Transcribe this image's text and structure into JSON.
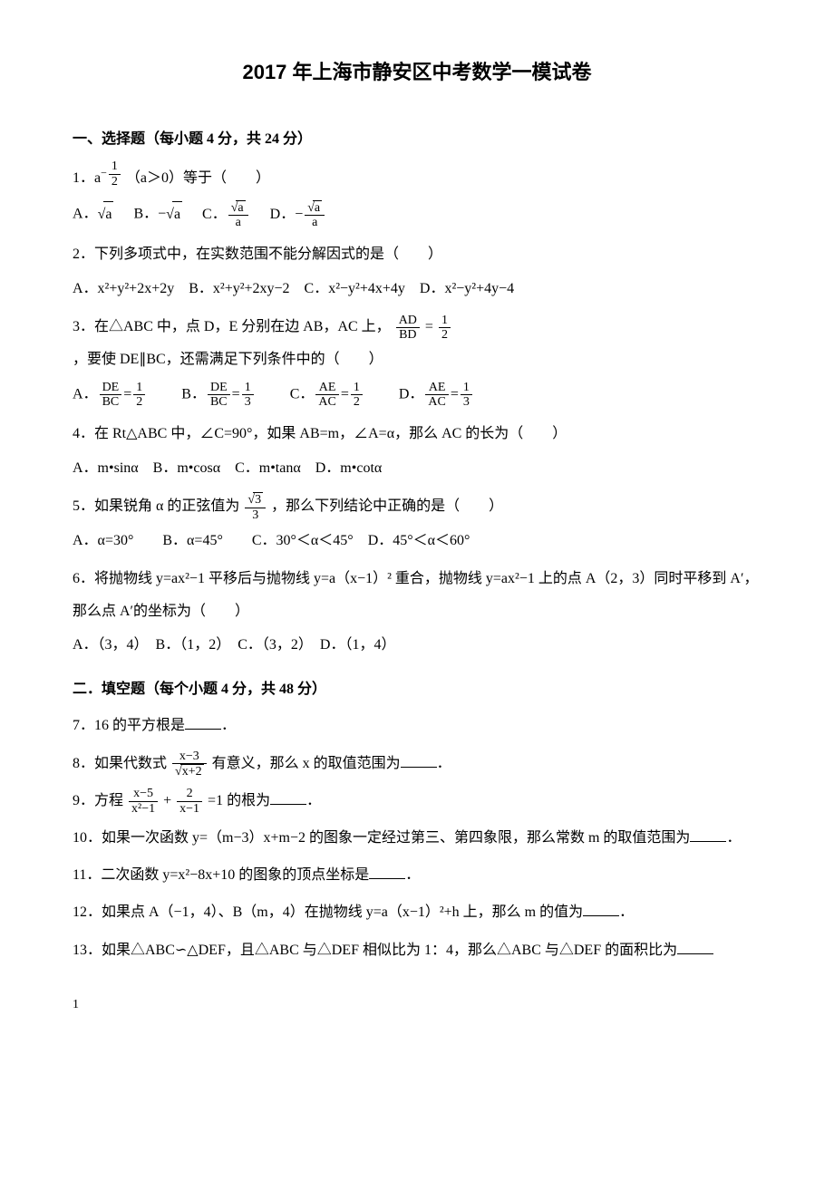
{
  "title": "2017 年上海市静安区中考数学一模试卷",
  "section1": {
    "heading": "一、选择题（每小题 4 分，共 24 分）",
    "q1": {
      "prefix": "1．a",
      "exp_neg": "−",
      "exp_num": "1",
      "exp_den": "2",
      "suffix": "（a＞0）等于（　　）",
      "optA_label": "A．",
      "optA_sqrt": "a",
      "optB_label": " B．−",
      "optB_sqrt": "a",
      "optC_label": "C．",
      "optC_num_sqrt": "a",
      "optC_den": "a",
      "optD_label": " D．−",
      "optD_num_sqrt": "a",
      "optD_den": "a"
    },
    "q2": {
      "stem": "2．下列多项式中，在实数范围不能分解因式的是（　　）",
      "opts": "A．x²+y²+2x+2y　B．x²+y²+2xy−2　C．x²−y²+4x+4y　D．x²−y²+4y−4"
    },
    "q3": {
      "prefix": "3．在△ABC 中，点 D，E 分别在边 AB，AC 上，",
      "frac1_num": "AD",
      "frac1_den": "BD",
      "eq": "=",
      "frac2_num": "1",
      "frac2_den": "2",
      "suffix": "，要使 DE∥BC，还需满足下列条件中的（　　）",
      "A_label": "A．",
      "A_n": "DE",
      "A_d": "BC",
      "A_eq": "=",
      "A_rn": "1",
      "A_rd": "2",
      "B_label": "　B．",
      "B_n": "DE",
      "B_d": "BC",
      "B_eq": "=",
      "B_rn": "1",
      "B_rd": "3",
      "C_label": "　C．",
      "C_n": "AE",
      "C_d": "AC",
      "C_eq": "=",
      "C_rn": "1",
      "C_rd": "2",
      "D_label": "　D．",
      "D_n": "AE",
      "D_d": "AC",
      "D_eq": "=",
      "D_rn": "1",
      "D_rd": "3"
    },
    "q4": {
      "stem": "4．在 Rt△ABC 中，∠C=90°，如果 AB=m，∠A=α，那么 AC 的长为（　　）",
      "opts": "A．m•sinα　B．m•cosα　C．m•tanα　D．m•cotα"
    },
    "q5": {
      "prefix": "5．如果锐角 α 的正弦值为",
      "num_sqrt": "3",
      "den": "3",
      "suffix": "，那么下列结论中正确的是（　　）",
      "opts": "A．α=30°　　B．α=45°　　C．30°＜α＜45°　D．45°＜α＜60°"
    },
    "q6": {
      "line1": "6．将抛物线 y=ax²−1 平移后与抛物线 y=a（x−1）² 重合，抛物线 y=ax²−1 上的点 A（2，3）同时平移到 A′，那么点 A′的坐标为（　　）",
      "opts": "A．（3，4）　B．（1，2）　C．（3，2）　D．（1，4）"
    }
  },
  "section2": {
    "heading": "二．填空题（每个小题 4 分，共 48 分）",
    "q7": {
      "prefix": "7．16 的平方根是",
      "suffix": "．"
    },
    "q8": {
      "prefix": "8．如果代数式",
      "num": "x−3",
      "den_sqrt": "x+2",
      "mid": "有意义，那么 x 的取值范围为",
      "suffix": "．"
    },
    "q9": {
      "prefix": "9．方程",
      "f1_num": "x−5",
      "f1_den": "x²−1",
      "plus": "+",
      "f2_num": "2",
      "f2_den": "x−1",
      "mid": "=1 的根为",
      "suffix": "．"
    },
    "q10": {
      "prefix": "10．如果一次函数 y=（m−3）x+m−2 的图象一定经过第三、第四象限，那么常数 m 的取值范围为",
      "suffix": "．"
    },
    "q11": {
      "prefix": "11．二次函数 y=x²−8x+10 的图象的顶点坐标是",
      "suffix": "．"
    },
    "q12": {
      "prefix": "12．如果点 A（−1，4）、B（m，4）在抛物线 y=a（x−1）²+h 上，那么 m 的值为",
      "suffix": "．"
    },
    "q13": {
      "prefix": "13．如果△ABC∽△DEF，且△ABC 与△DEF 相似比为 1：4，那么△ABC 与△DEF 的面积比为"
    }
  },
  "page_number": "1"
}
